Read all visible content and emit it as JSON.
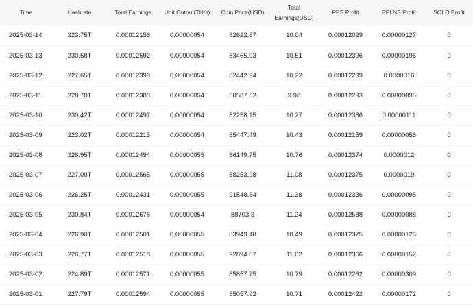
{
  "table": {
    "columns": [
      "Time",
      "Hashrate",
      "Total Earnings",
      "Unit Output(TH/s)",
      "Coin Price(USD)",
      "Total Earnings(USD)",
      "PPS Profit",
      "PPLNS Profit",
      "SOLO Profit"
    ],
    "rows": [
      [
        "2025-03-14",
        "223.75T",
        "0.00012156",
        "0.00000054",
        "82622.87",
        "10.04",
        "0.00012029",
        "0.00000127",
        "0"
      ],
      [
        "2025-03-13",
        "230.58T",
        "0.00012592",
        "0.00000054",
        "83465.93",
        "10.51",
        "0.00012396",
        "0.00000196",
        "0"
      ],
      [
        "2025-03-12",
        "227.65T",
        "0.00012399",
        "0.00000054",
        "82442.94",
        "10.22",
        "0.00012239",
        "0.0000016",
        "0"
      ],
      [
        "2025-03-11",
        "228.70T",
        "0.00012388",
        "0.00000054",
        "80587.62",
        "9.98",
        "0.00012293",
        "0.00000095",
        "0"
      ],
      [
        "2025-03-10",
        "230.42T",
        "0.00012497",
        "0.00000054",
        "82258.15",
        "10.27",
        "0.00012386",
        "0.00000111",
        "0"
      ],
      [
        "2025-03-09",
        "223.02T",
        "0.00012215",
        "0.00000054",
        "85447.49",
        "10.43",
        "0.00012159",
        "0.00000056",
        "0"
      ],
      [
        "2025-03-08",
        "226.95T",
        "0.00012494",
        "0.00000055",
        "86149.75",
        "10.76",
        "0.00012374",
        "0.0000012",
        "0"
      ],
      [
        "2025-03-07",
        "227.00T",
        "0.00012565",
        "0.00000055",
        "88253.98",
        "11.08",
        "0.00012375",
        "0.0000019",
        "0"
      ],
      [
        "2025-03-06",
        "226.25T",
        "0.00012431",
        "0.00000055",
        "91548.84",
        "11.38",
        "0.00012336",
        "0.00000095",
        "0"
      ],
      [
        "2025-03-05",
        "230.84T",
        "0.00012676",
        "0.00000054",
        "88703.3",
        "11.24",
        "0.00012588",
        "0.00000088",
        "0"
      ],
      [
        "2025-03-04",
        "226.90T",
        "0.00012501",
        "0.00000055",
        "83943.48",
        "10.49",
        "0.00012375",
        "0.00000126",
        "0"
      ],
      [
        "2025-03-03",
        "226.77T",
        "0.00012518",
        "0.00000055",
        "92894.07",
        "11.62",
        "0.00012366",
        "0.00000152",
        "0"
      ],
      [
        "2025-03-02",
        "224.89T",
        "0.00012571",
        "0.00000055",
        "85857.75",
        "10.79",
        "0.00012262",
        "0.00000309",
        "0"
      ],
      [
        "2025-03-01",
        "227.79T",
        "0.00012594",
        "0.00000055",
        "85057.92",
        "10.71",
        "0.00012422",
        "0.00000172",
        "0"
      ]
    ]
  }
}
